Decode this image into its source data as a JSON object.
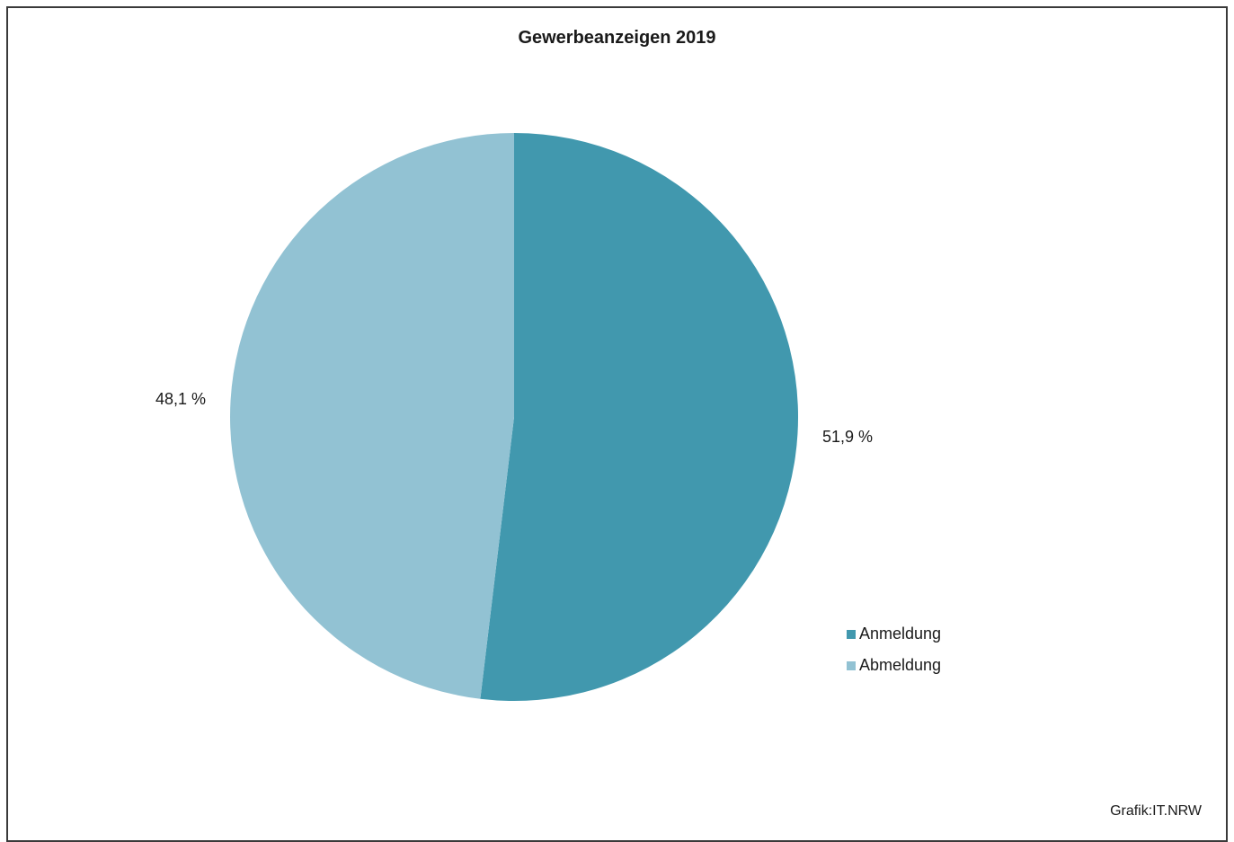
{
  "chart_data": {
    "type": "pie",
    "title": "Gewerbeanzeigen 2019",
    "categories": [
      "Anmeldung",
      "Abmeldung"
    ],
    "values": [
      51.9,
      48.1
    ],
    "value_labels": [
      "51,9 %",
      "48,1 %"
    ],
    "colors": [
      "#4198ae",
      "#92c2d3"
    ],
    "legend_position": "right",
    "credit": "Grafik:IT.NRW"
  }
}
